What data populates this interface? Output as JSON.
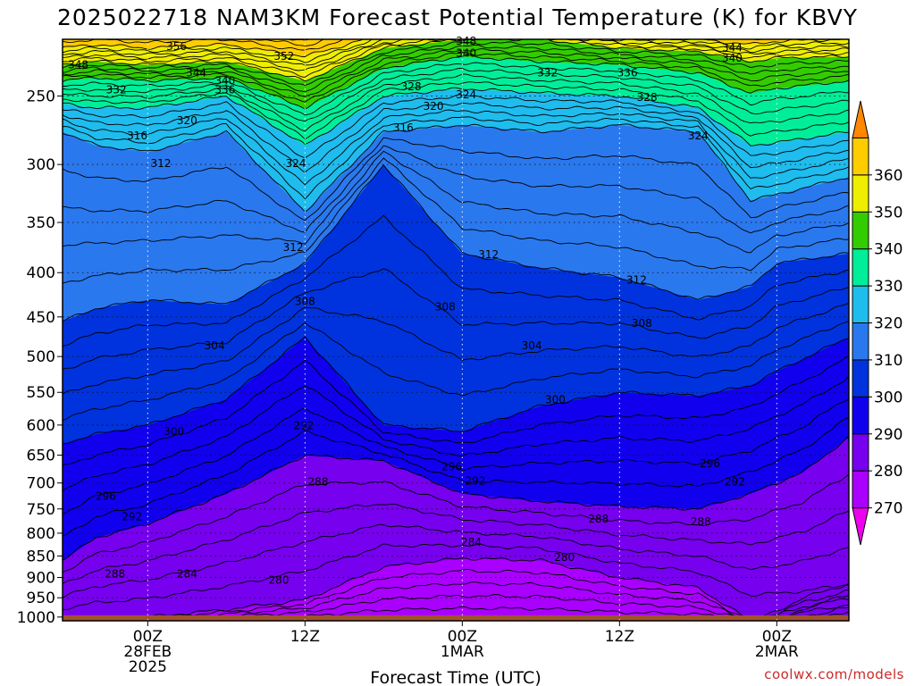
{
  "chart_data": {
    "type": "heatmap",
    "title": "2025022718 NAM3KM Forecast Potential Temperature (K) for KBVY",
    "xlabel": "Forecast Time (UTC)",
    "ylabel": "",
    "credit": "coolwx.com/models",
    "x_axis": {
      "unit": "hours from 2025-02-27 18Z",
      "range": [
        -6.5,
        53.5
      ],
      "ticks": [
        {
          "hour": 0,
          "lines": [
            "00Z",
            "28FEB",
            "2025"
          ]
        },
        {
          "hour": 12,
          "lines": [
            "12Z"
          ]
        },
        {
          "hour": 24,
          "lines": [
            "00Z",
            "1MAR"
          ]
        },
        {
          "hour": 36,
          "lines": [
            "12Z"
          ]
        },
        {
          "hour": 48,
          "lines": [
            "00Z",
            "2MAR"
          ]
        }
      ]
    },
    "y_axis": {
      "unit": "hPa",
      "scale": "log-pressure, inverted",
      "range": [
        1010,
        215
      ],
      "ticks": [
        250,
        300,
        350,
        400,
        450,
        500,
        550,
        600,
        650,
        700,
        750,
        800,
        850,
        900,
        950,
        1000
      ]
    },
    "grid": true,
    "colorbar": {
      "placement": "right",
      "levels": [
        260,
        270,
        280,
        290,
        300,
        310,
        320,
        330,
        340,
        350,
        360,
        370
      ],
      "colors": [
        "#ee00ee",
        "#aa00ff",
        "#7700ee",
        "#1100ee",
        "#0033dd",
        "#2a78ee",
        "#1fbcee",
        "#00ee99",
        "#33cc00",
        "#eeee00",
        "#ffcc00",
        "#ff8800"
      ],
      "tick_labels": [
        "270",
        "280",
        "290",
        "300",
        "310",
        "320",
        "330",
        "340",
        "350",
        "360"
      ]
    },
    "contour_interval": 2,
    "surface_fill": "#a0522d",
    "isentrope_ridges": [
      {
        "level": 270,
        "points": [
          [
            -6.5,
            1010
          ],
          [
            -4,
            1010
          ],
          [
            0,
            1010
          ],
          [
            6,
            1010
          ],
          [
            12,
            1010
          ],
          [
            18,
            1010
          ],
          [
            24,
            1010
          ],
          [
            30,
            1010
          ],
          [
            36,
            1010
          ],
          [
            42,
            1010
          ],
          [
            46,
            1010
          ],
          [
            48,
            985
          ],
          [
            50,
            950
          ],
          [
            52,
            930
          ],
          [
            53.5,
            915
          ]
        ]
      },
      {
        "level": 280,
        "points": [
          [
            -6.5,
            1010
          ],
          [
            -4,
            1005
          ],
          [
            0,
            1000
          ],
          [
            6,
            980
          ],
          [
            12,
            955
          ],
          [
            18,
            875
          ],
          [
            24,
            855
          ],
          [
            30,
            860
          ],
          [
            36,
            900
          ],
          [
            42,
            925
          ],
          [
            46,
            1010
          ],
          [
            48,
            1010
          ],
          [
            53.5,
            1010
          ]
        ]
      },
      {
        "level": 290,
        "points": [
          [
            -6.5,
            860
          ],
          [
            -4,
            810
          ],
          [
            0,
            780
          ],
          [
            6,
            720
          ],
          [
            12,
            650
          ],
          [
            18,
            660
          ],
          [
            24,
            720
          ],
          [
            30,
            735
          ],
          [
            36,
            745
          ],
          [
            42,
            750
          ],
          [
            46,
            720
          ],
          [
            48,
            700
          ],
          [
            50,
            680
          ],
          [
            53.5,
            620
          ]
        ]
      },
      {
        "level": 300,
        "points": [
          [
            -6.5,
            630
          ],
          [
            -4,
            615
          ],
          [
            0,
            600
          ],
          [
            6,
            560
          ],
          [
            12,
            475
          ],
          [
            18,
            600
          ],
          [
            24,
            610
          ],
          [
            30,
            570
          ],
          [
            36,
            550
          ],
          [
            42,
            555
          ],
          [
            46,
            540
          ],
          [
            48,
            520
          ],
          [
            53.5,
            475
          ]
        ]
      },
      {
        "level": 310,
        "points": [
          [
            -6.5,
            455
          ],
          [
            -4,
            440
          ],
          [
            0,
            430
          ],
          [
            6,
            435
          ],
          [
            12,
            390
          ],
          [
            18,
            300
          ],
          [
            24,
            380
          ],
          [
            30,
            395
          ],
          [
            36,
            405
          ],
          [
            42,
            430
          ],
          [
            46,
            415
          ],
          [
            48,
            390
          ],
          [
            53.5,
            380
          ]
        ]
      },
      {
        "level": 320,
        "points": [
          [
            -6.5,
            275
          ],
          [
            -4,
            285
          ],
          [
            0,
            290
          ],
          [
            6,
            275
          ],
          [
            12,
            340
          ],
          [
            18,
            275
          ],
          [
            24,
            270
          ],
          [
            30,
            275
          ],
          [
            36,
            270
          ],
          [
            42,
            275
          ],
          [
            46,
            330
          ],
          [
            48,
            325
          ],
          [
            53.5,
            310
          ]
        ]
      },
      {
        "level": 330,
        "points": [
          [
            -6.5,
            255
          ],
          [
            -4,
            258
          ],
          [
            0,
            258
          ],
          [
            6,
            250
          ],
          [
            12,
            285
          ],
          [
            18,
            250
          ],
          [
            24,
            245
          ],
          [
            30,
            248
          ],
          [
            36,
            250
          ],
          [
            42,
            258
          ],
          [
            46,
            285
          ],
          [
            48,
            283
          ],
          [
            53.5,
            275
          ]
        ]
      },
      {
        "level": 340,
        "points": [
          [
            -6.5,
            240
          ],
          [
            -4,
            238
          ],
          [
            0,
            240
          ],
          [
            6,
            238
          ],
          [
            12,
            258
          ],
          [
            18,
            232
          ],
          [
            24,
            225
          ],
          [
            30,
            228
          ],
          [
            36,
            230
          ],
          [
            42,
            235
          ],
          [
            46,
            248
          ],
          [
            48,
            245
          ],
          [
            53.5,
            240
          ]
        ]
      },
      {
        "level": 350,
        "points": [
          [
            -6.5,
            230
          ],
          [
            -4,
            228
          ],
          [
            0,
            230
          ],
          [
            6,
            228
          ],
          [
            12,
            240
          ],
          [
            18,
            220
          ],
          [
            24,
            215
          ],
          [
            30,
            215
          ],
          [
            36,
            220
          ],
          [
            42,
            222
          ],
          [
            46,
            228
          ],
          [
            48,
            226
          ],
          [
            53.5,
            225
          ]
        ]
      },
      {
        "level": 360,
        "points": [
          [
            -6.5,
            220
          ],
          [
            -4,
            218
          ],
          [
            0,
            220
          ],
          [
            6,
            218
          ],
          [
            12,
            225
          ],
          [
            18,
            212
          ],
          [
            24,
            210
          ],
          [
            30,
            210
          ],
          [
            36,
            212
          ],
          [
            42,
            215
          ],
          [
            46,
            218
          ],
          [
            48,
            216
          ],
          [
            53.5,
            215
          ]
        ]
      }
    ],
    "contour_labels": [
      {
        "text": "356",
        "x": 2.2,
        "y": 219
      },
      {
        "text": "348",
        "x": 24.3,
        "y": 216
      },
      {
        "text": "352",
        "x": 10.4,
        "y": 225
      },
      {
        "text": "340",
        "x": 24.3,
        "y": 223
      },
      {
        "text": "348",
        "x": -5.3,
        "y": 230
      },
      {
        "text": "344",
        "x": 3.7,
        "y": 235
      },
      {
        "text": "344",
        "x": 44.6,
        "y": 220
      },
      {
        "text": "340",
        "x": 44.6,
        "y": 226
      },
      {
        "text": "340",
        "x": 5.9,
        "y": 240
      },
      {
        "text": "332",
        "x": 30.5,
        "y": 235
      },
      {
        "text": "336",
        "x": 36.6,
        "y": 235
      },
      {
        "text": "336",
        "x": 5.9,
        "y": 246
      },
      {
        "text": "332",
        "x": -2.4,
        "y": 246
      },
      {
        "text": "328",
        "x": 20.1,
        "y": 244
      },
      {
        "text": "324",
        "x": 24.3,
        "y": 249
      },
      {
        "text": "328",
        "x": 38.1,
        "y": 251
      },
      {
        "text": "320",
        "x": 21.8,
        "y": 257
      },
      {
        "text": "320",
        "x": 3.0,
        "y": 267
      },
      {
        "text": "316",
        "x": 19.5,
        "y": 272
      },
      {
        "text": "316",
        "x": -0.8,
        "y": 278
      },
      {
        "text": "324",
        "x": 42.0,
        "y": 278
      },
      {
        "text": "312",
        "x": 1.0,
        "y": 299
      },
      {
        "text": "324",
        "x": 11.3,
        "y": 299
      },
      {
        "text": "312",
        "x": 11.1,
        "y": 374
      },
      {
        "text": "312",
        "x": 26.0,
        "y": 381
      },
      {
        "text": "312",
        "x": 37.3,
        "y": 408
      },
      {
        "text": "308",
        "x": 12.0,
        "y": 432
      },
      {
        "text": "308",
        "x": 22.7,
        "y": 438
      },
      {
        "text": "308",
        "x": 37.7,
        "y": 458
      },
      {
        "text": "304",
        "x": 5.1,
        "y": 486
      },
      {
        "text": "304",
        "x": 29.3,
        "y": 486
      },
      {
        "text": "300",
        "x": 31.1,
        "y": 561
      },
      {
        "text": "292",
        "x": 11.9,
        "y": 601
      },
      {
        "text": "300",
        "x": 2.0,
        "y": 610
      },
      {
        "text": "296",
        "x": 23.2,
        "y": 670
      },
      {
        "text": "296",
        "x": 42.9,
        "y": 665
      },
      {
        "text": "292",
        "x": 25.0,
        "y": 696
      },
      {
        "text": "292",
        "x": 44.8,
        "y": 698
      },
      {
        "text": "288",
        "x": 13.0,
        "y": 698
      },
      {
        "text": "296",
        "x": -3.2,
        "y": 725
      },
      {
        "text": "292",
        "x": -1.2,
        "y": 766
      },
      {
        "text": "288",
        "x": 34.4,
        "y": 770
      },
      {
        "text": "288",
        "x": 42.2,
        "y": 776
      },
      {
        "text": "284",
        "x": 24.7,
        "y": 819
      },
      {
        "text": "280",
        "x": 31.8,
        "y": 853
      },
      {
        "text": "288",
        "x": -2.5,
        "y": 892
      },
      {
        "text": "284",
        "x": 3.0,
        "y": 892
      },
      {
        "text": "280",
        "x": 10.0,
        "y": 907
      }
    ]
  }
}
